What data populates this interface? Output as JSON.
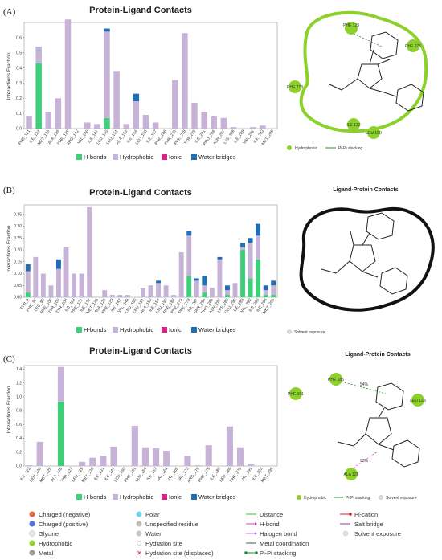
{
  "colors": {
    "hbond": "#3fcf7a",
    "hydrophobic": "#c8b3d8",
    "ionic": "#e0208a",
    "water": "#1f6fb5",
    "green_contour": "#8bd12a"
  },
  "panel_letters": [
    "(A)",
    "(B)",
    "(C)"
  ],
  "legend_labels": [
    "H-bonds",
    "Hydrophobic",
    "Ionic",
    "Water bridges"
  ],
  "chart_data": [
    {
      "type": "bar",
      "title": "Protein-Ligand Contacts",
      "ylabel": "Interactions Fraction",
      "ylim": [
        0,
        0.7
      ],
      "yticks": [
        "0.0",
        "0.1",
        "0.2",
        "0.3",
        "0.4",
        "0.5",
        "0.6"
      ],
      "stacked": true,
      "categories": [
        "PHE_121",
        "ILE_122",
        "MET_125",
        "ALA_126",
        "PHE_129",
        "ARG_142",
        "VAL_146",
        "ILE_147",
        "LEU_150",
        "LEU_151",
        "ALA_153",
        "ILE_154",
        "LEU_156",
        "ILE_157",
        "PHE_186",
        "PHE_275",
        "PHE_278",
        "TYR_279",
        "ILE_281",
        "PRO_286",
        "ASN_287",
        "LYS_288",
        "ILE_289",
        "VAL_292",
        "ILE_293",
        "MET_295"
      ],
      "series": [
        {
          "name": "H-bonds",
          "values": [
            0,
            0.43,
            0,
            0,
            0,
            0,
            0,
            0,
            0.07,
            0,
            0,
            0,
            0,
            0,
            0,
            0,
            0,
            0,
            0,
            0,
            0,
            0,
            0,
            0,
            0,
            0
          ]
        },
        {
          "name": "Hydrophobic",
          "values": [
            0.08,
            0.11,
            0.11,
            0.2,
            0.72,
            0,
            0.04,
            0.03,
            0.57,
            0.38,
            0.03,
            0.18,
            0.09,
            0.04,
            0,
            0.32,
            0.63,
            0.17,
            0.11,
            0.08,
            0.07,
            0.01,
            0,
            0.01,
            0.02,
            0
          ]
        },
        {
          "name": "Ionic",
          "values": [
            0,
            0,
            0,
            0,
            0,
            0,
            0,
            0,
            0,
            0,
            0,
            0,
            0,
            0,
            0,
            0,
            0,
            0,
            0,
            0,
            0,
            0,
            0,
            0,
            0,
            0
          ]
        },
        {
          "name": "Water bridges",
          "values": [
            0,
            0,
            0,
            0,
            0,
            0,
            0,
            0,
            0.02,
            0,
            0,
            0.05,
            0,
            0,
            0,
            0,
            0,
            0,
            0,
            0,
            0,
            0,
            0,
            0,
            0,
            0
          ]
        }
      ]
    },
    {
      "type": "bar",
      "title": "Protein-Ligand Contacts",
      "ylabel": "Interactions Fraction",
      "ylim": [
        0,
        0.39
      ],
      "yticks": [
        "0.00",
        "0.05",
        "0.10",
        "0.15",
        "0.20",
        "0.25",
        "0.30",
        "0.35"
      ],
      "stacked": true,
      "categories": [
        "TYR_8",
        "PHE_97",
        "LEU_99",
        "PHE_100",
        "TYR_103",
        "TYR_104",
        "ILE_118",
        "PHE_121",
        "ILE_122",
        "MET_125",
        "ALA_126",
        "PHE_129",
        "ILE_147",
        "VAL_146",
        "LEU_150",
        "LEU_151",
        "ALA_153",
        "ILE_154",
        "LEU_156",
        "PHE_186",
        "PHE_275",
        "PHE_278",
        "ILE_281",
        "SER_284",
        "PRO_286",
        "ASN_287",
        "LYS_288",
        "GLU_290",
        "ILE_289",
        "VAL_292",
        "ILE_293",
        "ILE_294",
        "MET_295"
      ],
      "series": [
        {
          "name": "H-bonds",
          "values": [
            0.02,
            0,
            0,
            0,
            0,
            0,
            0,
            0,
            0,
            0,
            0,
            0,
            0,
            0,
            0,
            0,
            0,
            0,
            0,
            0,
            0,
            0.09,
            0,
            0.02,
            0,
            0,
            0.01,
            0,
            0.2,
            0.08,
            0.16,
            0.01,
            0.01
          ]
        },
        {
          "name": "Hydrophobic",
          "values": [
            0.09,
            0.17,
            0.1,
            0.05,
            0.12,
            0.21,
            0.1,
            0.1,
            0.38,
            0,
            0.03,
            0.01,
            0.01,
            0.01,
            0,
            0.04,
            0.05,
            0.06,
            0.05,
            0.01,
            0.19,
            0.17,
            0.07,
            0.03,
            0.04,
            0.16,
            0.02,
            0.06,
            0.01,
            0.15,
            0.1,
            0.02,
            0.04
          ]
        },
        {
          "name": "Ionic",
          "values": [
            0,
            0,
            0,
            0,
            0,
            0,
            0,
            0,
            0,
            0,
            0,
            0,
            0,
            0,
            0,
            0,
            0,
            0,
            0,
            0,
            0,
            0,
            0,
            0,
            0,
            0,
            0,
            0,
            0,
            0,
            0,
            0,
            0
          ]
        },
        {
          "name": "Water bridges",
          "values": [
            0.03,
            0,
            0,
            0,
            0.04,
            0,
            0,
            0,
            0,
            0,
            0,
            0,
            0,
            0,
            0,
            0,
            0,
            0.01,
            0,
            0,
            0,
            0.02,
            0.01,
            0.04,
            0,
            0.01,
            0.02,
            0,
            0.02,
            0.02,
            0.05,
            0.02,
            0.02
          ]
        }
      ]
    },
    {
      "type": "bar",
      "title": "Protein-Ligand Contacts",
      "ylabel": "Interactions Fraction",
      "ylim": [
        0,
        1.45
      ],
      "yticks": [
        "0.0",
        "0.2",
        "0.4",
        "0.6",
        "0.8",
        "1.0",
        "1.2",
        "1.4"
      ],
      "stacked": true,
      "categories": [
        "ILE_122",
        "LEU_123",
        "MET_125",
        "ALA_126",
        "THR_127",
        "LEU_129",
        "MET_130",
        "ILE_131",
        "ILE_147",
        "LEU_150",
        "PHE_151",
        "LEU_154",
        "ILE_157",
        "VAL_161",
        "VAL_165",
        "VAL_173",
        "ARG_178",
        "PHE_179",
        "ILE_180",
        "LEU_188",
        "PHE_275",
        "VAL_291",
        "ILE_292",
        "MET_295"
      ],
      "series": [
        {
          "name": "H-bonds",
          "values": [
            0,
            0,
            0,
            0.93,
            0,
            0,
            0,
            0,
            0,
            0,
            0,
            0,
            0,
            0,
            0,
            0,
            0,
            0,
            0,
            0,
            0,
            0,
            0,
            0
          ]
        },
        {
          "name": "Hydrophobic",
          "values": [
            0.01,
            0.35,
            0,
            0.5,
            0,
            0.06,
            0.12,
            0.15,
            0.28,
            0,
            0.58,
            0.27,
            0.26,
            0.22,
            0,
            0.15,
            0.01,
            0.3,
            0,
            0.57,
            0.27,
            0.03,
            0,
            0
          ]
        },
        {
          "name": "Ionic",
          "values": [
            0,
            0,
            0,
            0,
            0,
            0,
            0,
            0,
            0,
            0,
            0,
            0,
            0,
            0,
            0,
            0,
            0,
            0,
            0,
            0,
            0,
            0,
            0,
            0
          ]
        },
        {
          "name": "Water bridges",
          "values": [
            0,
            0,
            0,
            0,
            0,
            0,
            0,
            0,
            0,
            0,
            0,
            0,
            0,
            0,
            0,
            0,
            0,
            0,
            0,
            0,
            0,
            0,
            0,
            0
          ]
        }
      ]
    }
  ],
  "diagrams": {
    "A": {
      "title": "",
      "residues": [
        "PHE 129",
        "PHE 275",
        "PHE 278",
        "ILE 122",
        "LEU 150"
      ],
      "legend": [
        "Hydrophobic",
        "Pi-Pi stacking"
      ]
    },
    "B": {
      "title": "Ligand-Protein Contacts",
      "legend": [
        "Solvent exposure"
      ]
    },
    "C": {
      "title": "Ligand-Protein Contacts",
      "residues": [
        "PHE 186",
        "PHE 151",
        "LEU 123",
        "ALA 126"
      ],
      "annot": [
        "54%",
        "93%"
      ],
      "legend": [
        "Hydrophobic",
        "Pi-Pi stacking",
        "Solvent exposure"
      ]
    }
  },
  "key": {
    "col1": [
      "Charged (negative)",
      "Charged (positive)",
      "Glycine",
      "Hydrophobic",
      "Metal"
    ],
    "col2": [
      "Polar",
      "Unspecified residue",
      "Water",
      "Hydration site",
      "Hydration site (displaced)"
    ],
    "col3": [
      "Distance",
      "H-bond",
      "Halogen bond",
      "Metal coordination",
      "Pi-Pi stacking"
    ],
    "col4": [
      "Pi-cation",
      "Salt bridge",
      "Solvent exposure"
    ]
  }
}
